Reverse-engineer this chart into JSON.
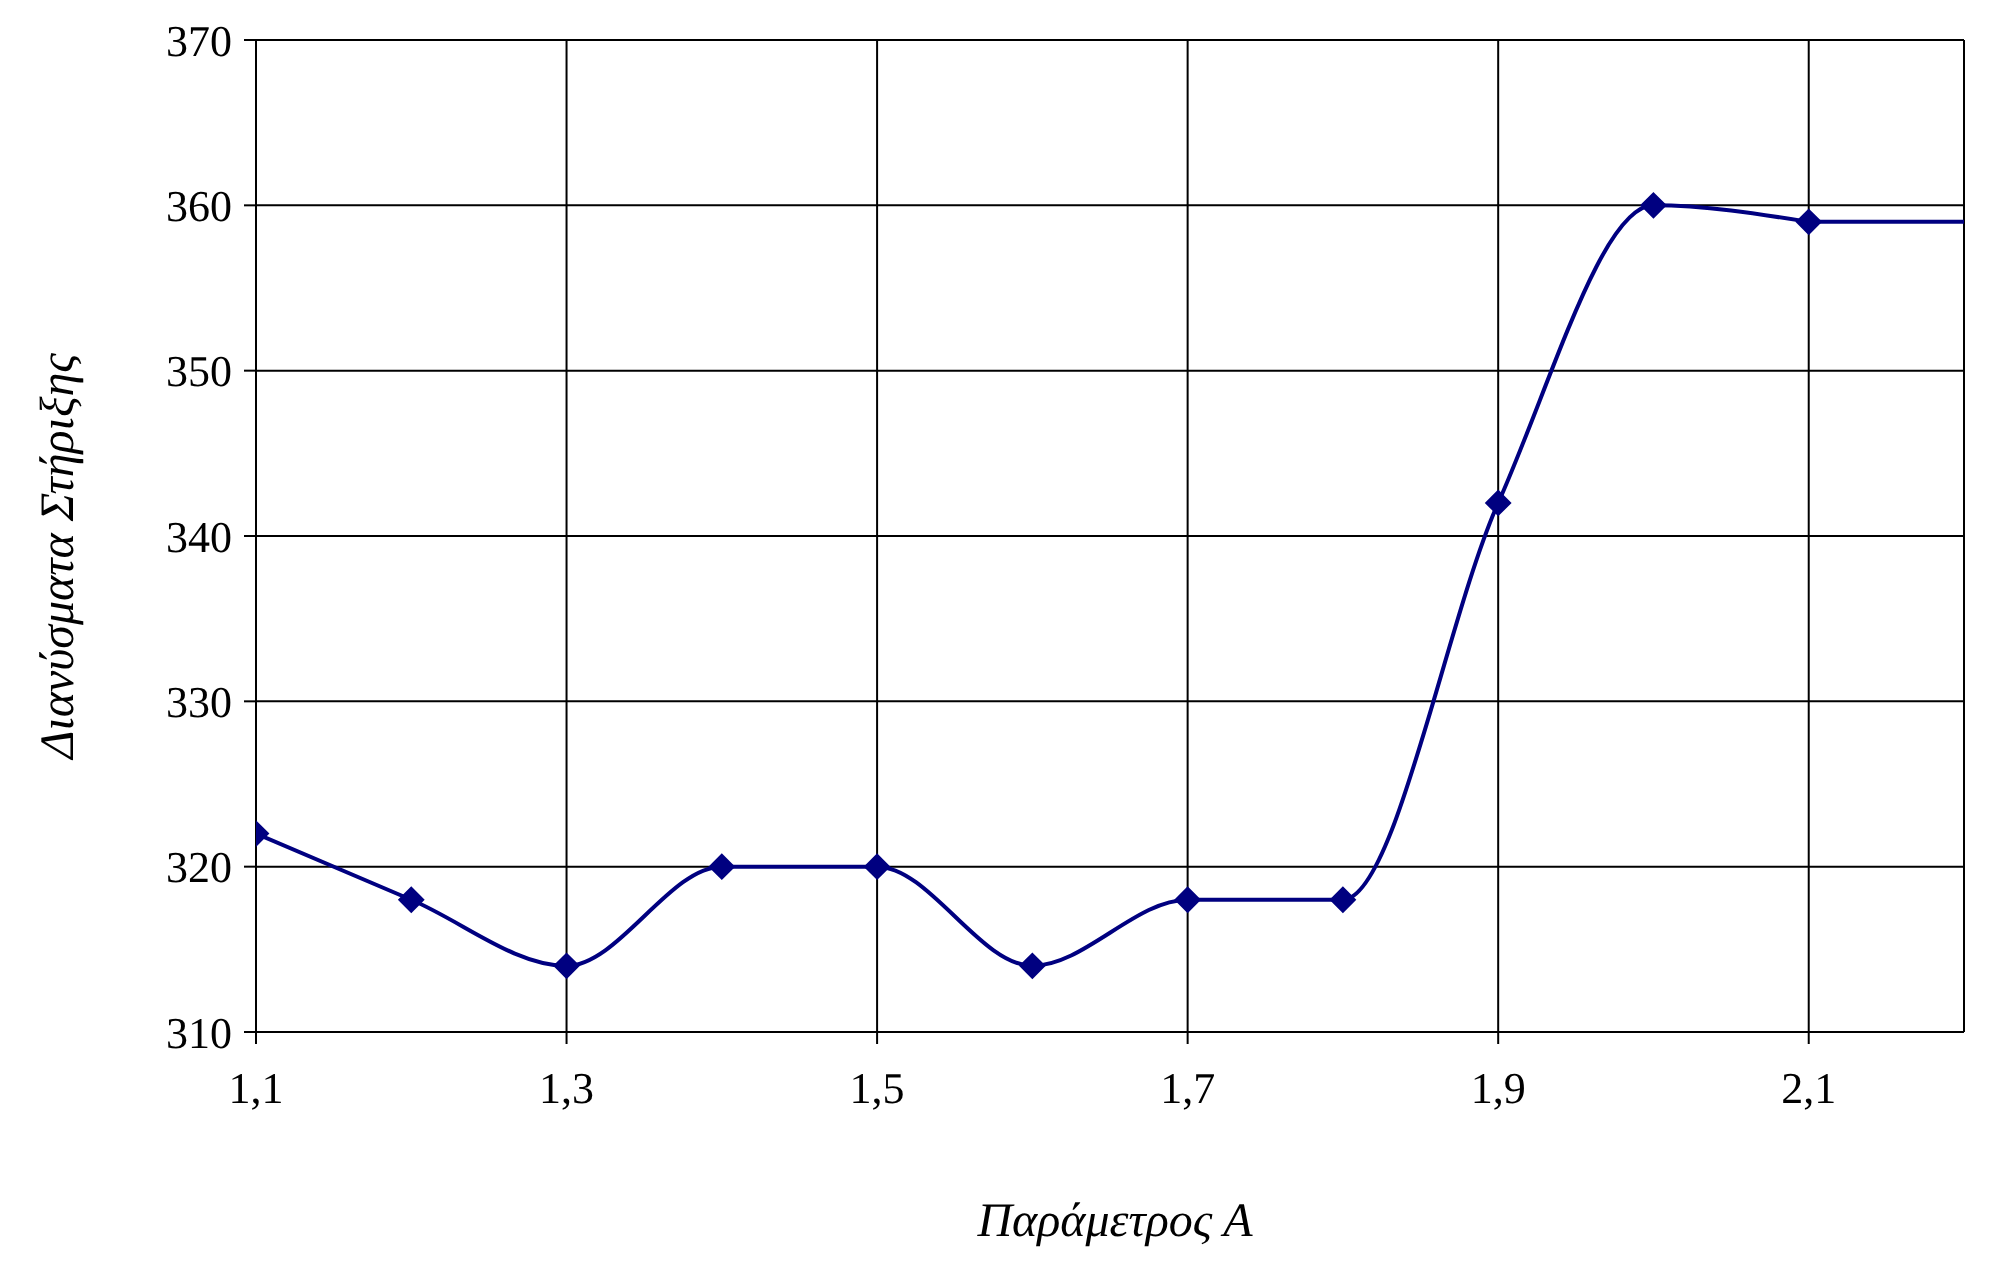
{
  "chart_data": {
    "type": "line",
    "xlabel": "Παράμετρος Α",
    "ylabel": "Διανύσματα Στήριξης",
    "x": [
      1.1,
      1.2,
      1.3,
      1.4,
      1.5,
      1.6,
      1.7,
      1.8,
      1.9,
      2.0,
      2.1
    ],
    "series": [
      {
        "color": "#000080",
        "values": [
          322,
          318,
          314,
          320,
          320,
          314,
          318,
          318,
          342,
          360,
          359
        ],
        "marker": "diamond"
      },
      {
        "type": "line",
        "color": "#000080",
        "x": [
          2.1,
          2.2
        ],
        "values": [
          359,
          359
        ],
        "marker": "none"
      }
    ],
    "xlim": [
      1.1,
      2.2
    ],
    "xticks": [
      {
        "value": 1.1,
        "label": "1,1"
      },
      {
        "value": 1.3,
        "label": "1,3"
      },
      {
        "value": 1.5,
        "label": "1,5"
      },
      {
        "value": 1.7,
        "label": "1,7"
      },
      {
        "value": 1.9,
        "label": "1,9"
      },
      {
        "value": 2.1,
        "label": "2,1"
      }
    ],
    "ylim": [
      310,
      370
    ],
    "yticks": [
      310,
      320,
      330,
      340,
      350,
      360,
      370
    ],
    "grid": true
  }
}
